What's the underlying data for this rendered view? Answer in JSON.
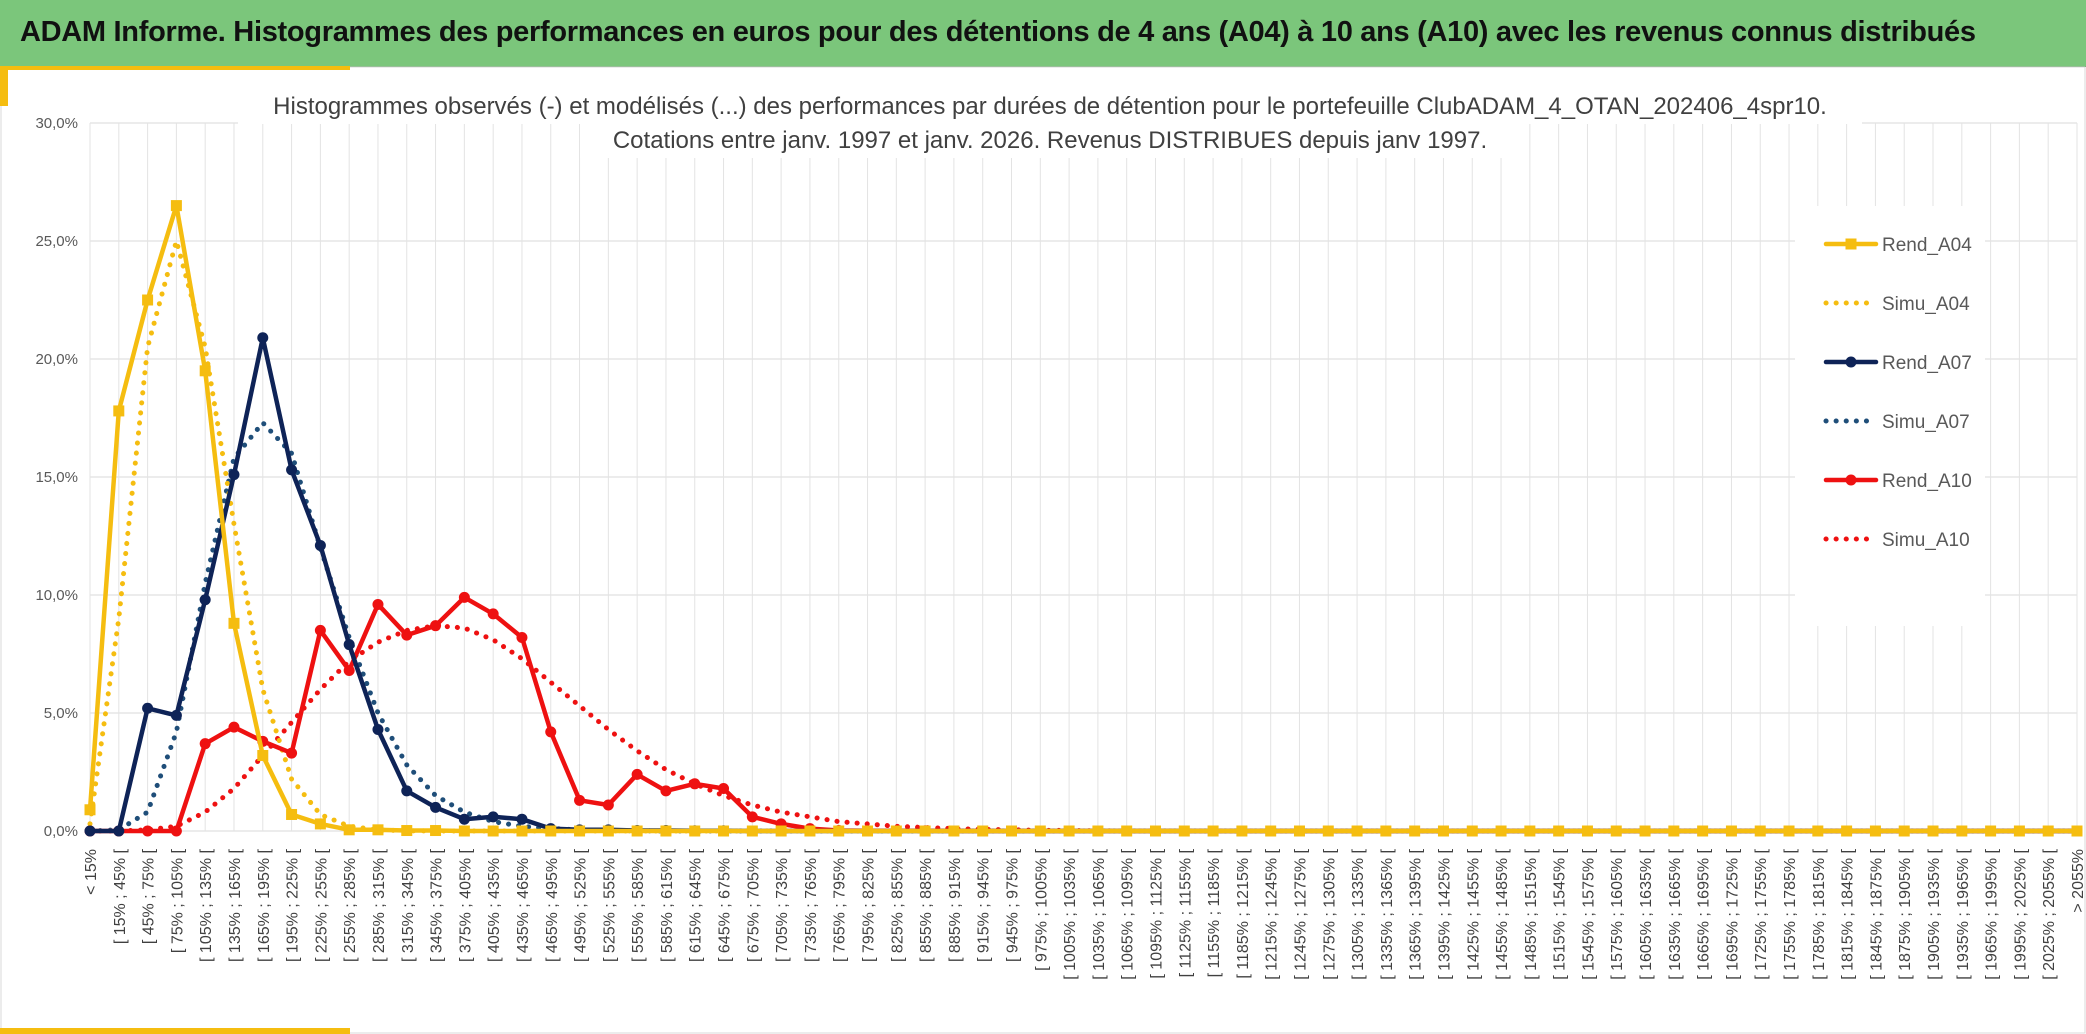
{
  "banner": {
    "title": "ADAM Informe. Histogrammes des performances en euros pour des détentions de 4 ans (A04) à 10 ans (A10) avec les revenus connus distribués"
  },
  "colors": {
    "banner": "#7bc67b",
    "yellow": "#f5bd10",
    "navy": "#0e2357",
    "red": "#ee1111",
    "frame": "#f5bd10"
  },
  "chart_data": {
    "type": "line",
    "title": "Histogrammes observés (-) et modélisés (...) des performances par durées de détention pour le portefeuille ClubADAM_4_OTAN_202406_4spr10.",
    "subtitle": "Cotations entre janv. 1997 et janv. 2026. Revenus DISTRIBUES depuis janv 1997.",
    "xlabel": "",
    "ylabel": "",
    "ylim": [
      0,
      30
    ],
    "yticks": [
      "0,0%",
      "5,0%",
      "10,0%",
      "15,0%",
      "20,0%",
      "25,0%",
      "30,0%"
    ],
    "grid": true,
    "legend_position": "right",
    "categories": [
      "< 15%",
      "[ 15% ; 45% [",
      "[ 45% ; 75% [",
      "[ 75% ; 105% [",
      "[ 105% ; 135% [",
      "[ 135% ; 165% [",
      "[ 165% ; 195% [",
      "[ 195% ; 225% [",
      "[ 225% ; 255% [",
      "[ 255% ; 285% [",
      "[ 285% ; 315% [",
      "[ 315% ; 345% [",
      "[ 345% ; 375% [",
      "[ 375% ; 405% [",
      "[ 405% ; 435% [",
      "[ 435% ; 465% [",
      "[ 465% ; 495% [",
      "[ 495% ; 525% [",
      "[ 525% ; 555% [",
      "[ 555% ; 585% [",
      "[ 585% ; 615% [",
      "[ 615% ; 645% [",
      "[ 645% ; 675% [",
      "[ 675% ; 705% [",
      "[ 705% ; 735% [",
      "[ 735% ; 765% [",
      "[ 765% ; 795% [",
      "[ 795% ; 825% [",
      "[ 825% ; 855% [",
      "[ 855% ; 885% [",
      "[ 885% ; 915% [",
      "[ 915% ; 945% [",
      "[ 945% ; 975% [",
      "[ 975% ; 1005% [",
      "[ 1005% ; 1035% [",
      "[ 1035% ; 1065% [",
      "[ 1065% ; 1095% [",
      "[ 1095% ; 1125% [",
      "[ 1125% ; 1155% [",
      "[ 1155% ; 1185% [",
      "[ 1185% ; 1215% [",
      "[ 1215% ; 1245% [",
      "[ 1245% ; 1275% [",
      "[ 1275% ; 1305% [",
      "[ 1305% ; 1335% [",
      "[ 1335% ; 1365% [",
      "[ 1365% ; 1395% [",
      "[ 1395% ; 1425% [",
      "[ 1425% ; 1455% [",
      "[ 1455% ; 1485% [",
      "[ 1485% ; 1515% [",
      "[ 1515% ; 1545% [",
      "[ 1545% ; 1575% [",
      "[ 1575% ; 1605% [",
      "[ 1605% ; 1635% [",
      "[ 1635% ; 1665% [",
      "[ 1665% ; 1695% [",
      "[ 1695% ; 1725% [",
      "[ 1725% ; 1755% [",
      "[ 1755% ; 1785% [",
      "[ 1785% ; 1815% [",
      "[ 1815% ; 1845% [",
      "[ 1845% ; 1875% [",
      "[ 1875% ; 1905% [",
      "[ 1905% ; 1935% [",
      "[ 1935% ; 1965% [",
      "[ 1965% ; 1995% [",
      "[ 1995% ; 2025% [",
      "[ 2025% ; 2055% [",
      "> 2055%"
    ],
    "series": [
      {
        "name": "Rend_A04",
        "style": "solid",
        "marker": "square",
        "color": "#f5bd10",
        "values": [
          0.9,
          17.8,
          22.5,
          26.5,
          19.5,
          8.8,
          3.2,
          0.7,
          0.3,
          0.05,
          0.05,
          0.02,
          0.02,
          0,
          0,
          0,
          0,
          0,
          0,
          0,
          0,
          0,
          0,
          0,
          0,
          0,
          0,
          0,
          0,
          0,
          0,
          0,
          0,
          0,
          0,
          0,
          0,
          0,
          0,
          0,
          0,
          0,
          0,
          0,
          0,
          0,
          0,
          0,
          0,
          0,
          0,
          0,
          0,
          0,
          0,
          0,
          0,
          0,
          0,
          0,
          0,
          0,
          0,
          0,
          0,
          0,
          0,
          0,
          0,
          0
        ]
      },
      {
        "name": "Simu_A04",
        "style": "dotted",
        "marker": "none",
        "color": "#f5bd10",
        "values": [
          0.3,
          9.0,
          20.5,
          25.0,
          20.5,
          13.0,
          6.0,
          2.2,
          0.7,
          0.2,
          0.05,
          0.01,
          0,
          0,
          0,
          0,
          0,
          0,
          0,
          0,
          0,
          0,
          0,
          0,
          0,
          0,
          0,
          0,
          0,
          0,
          0,
          0,
          0,
          0,
          0,
          0,
          0,
          0,
          0,
          0,
          0,
          0,
          0,
          0,
          0,
          0,
          0,
          0,
          0,
          0,
          0,
          0,
          0,
          0,
          0,
          0,
          0,
          0,
          0,
          0,
          0,
          0,
          0,
          0,
          0,
          0,
          0,
          0,
          0,
          0
        ]
      },
      {
        "name": "Rend_A07",
        "style": "solid",
        "marker": "circle",
        "color": "#0e2357",
        "values": [
          0,
          0,
          5.2,
          4.9,
          9.8,
          15.1,
          20.9,
          15.3,
          12.1,
          7.9,
          4.3,
          1.7,
          1.0,
          0.5,
          0.6,
          0.5,
          0.1,
          0.05,
          0.05,
          0.02,
          0.02,
          0.01,
          0.01,
          0,
          0,
          0,
          0,
          0,
          0,
          0,
          0,
          0,
          0,
          0,
          0,
          0,
          0,
          0,
          0,
          0,
          0,
          0,
          0,
          0,
          0,
          0,
          0,
          0,
          0,
          0,
          0,
          0,
          0,
          0,
          0,
          0,
          0,
          0,
          0,
          0,
          0,
          0,
          0,
          0,
          0,
          0,
          0,
          0,
          0,
          0
        ]
      },
      {
        "name": "Simu_A07",
        "style": "dotted",
        "marker": "none",
        "color": "#1f4e79",
        "values": [
          0,
          0.05,
          0.8,
          4.2,
          10.5,
          15.8,
          17.3,
          16.0,
          12.0,
          8.2,
          5.0,
          2.8,
          1.5,
          0.8,
          0.4,
          0.2,
          0.1,
          0.05,
          0.02,
          0.01,
          0,
          0,
          0,
          0,
          0,
          0,
          0,
          0,
          0,
          0,
          0,
          0,
          0,
          0,
          0,
          0,
          0,
          0,
          0,
          0,
          0,
          0,
          0,
          0,
          0,
          0,
          0,
          0,
          0,
          0,
          0,
          0,
          0,
          0,
          0,
          0,
          0,
          0,
          0,
          0,
          0,
          0,
          0,
          0,
          0,
          0,
          0,
          0,
          0,
          0
        ]
      },
      {
        "name": "Rend_A10",
        "style": "solid",
        "marker": "circle",
        "color": "#ee1111",
        "values": [
          0,
          0,
          0,
          0,
          3.7,
          4.4,
          3.8,
          3.3,
          8.5,
          6.8,
          9.6,
          8.3,
          8.7,
          9.9,
          9.2,
          8.2,
          4.2,
          1.3,
          1.1,
          2.4,
          1.7,
          2.0,
          1.8,
          0.6,
          0.3,
          0.1,
          0.02,
          0.01,
          0.01,
          0.01,
          0,
          0,
          0,
          0,
          0,
          0,
          0,
          0,
          0,
          0,
          0,
          0,
          0,
          0,
          0,
          0,
          0,
          0,
          0,
          0,
          0,
          0,
          0,
          0,
          0,
          0,
          0,
          0,
          0,
          0,
          0,
          0,
          0,
          0,
          0,
          0,
          0,
          0,
          0,
          0
        ]
      },
      {
        "name": "Simu_A10",
        "style": "dotted",
        "marker": "none",
        "color": "#ee1111",
        "values": [
          0,
          0,
          0.05,
          0.2,
          0.8,
          1.8,
          3.2,
          4.6,
          6.0,
          7.2,
          8.0,
          8.5,
          8.7,
          8.6,
          8.1,
          7.3,
          6.3,
          5.3,
          4.3,
          3.4,
          2.6,
          2.0,
          1.5,
          1.1,
          0.8,
          0.6,
          0.4,
          0.3,
          0.2,
          0.15,
          0.1,
          0.07,
          0.05,
          0.03,
          0.02,
          0.01,
          0,
          0,
          0,
          0,
          0,
          0,
          0,
          0,
          0,
          0,
          0,
          0,
          0,
          0,
          0,
          0,
          0,
          0,
          0,
          0,
          0,
          0,
          0,
          0,
          0,
          0,
          0,
          0,
          0,
          0,
          0,
          0,
          0,
          0
        ]
      }
    ]
  }
}
